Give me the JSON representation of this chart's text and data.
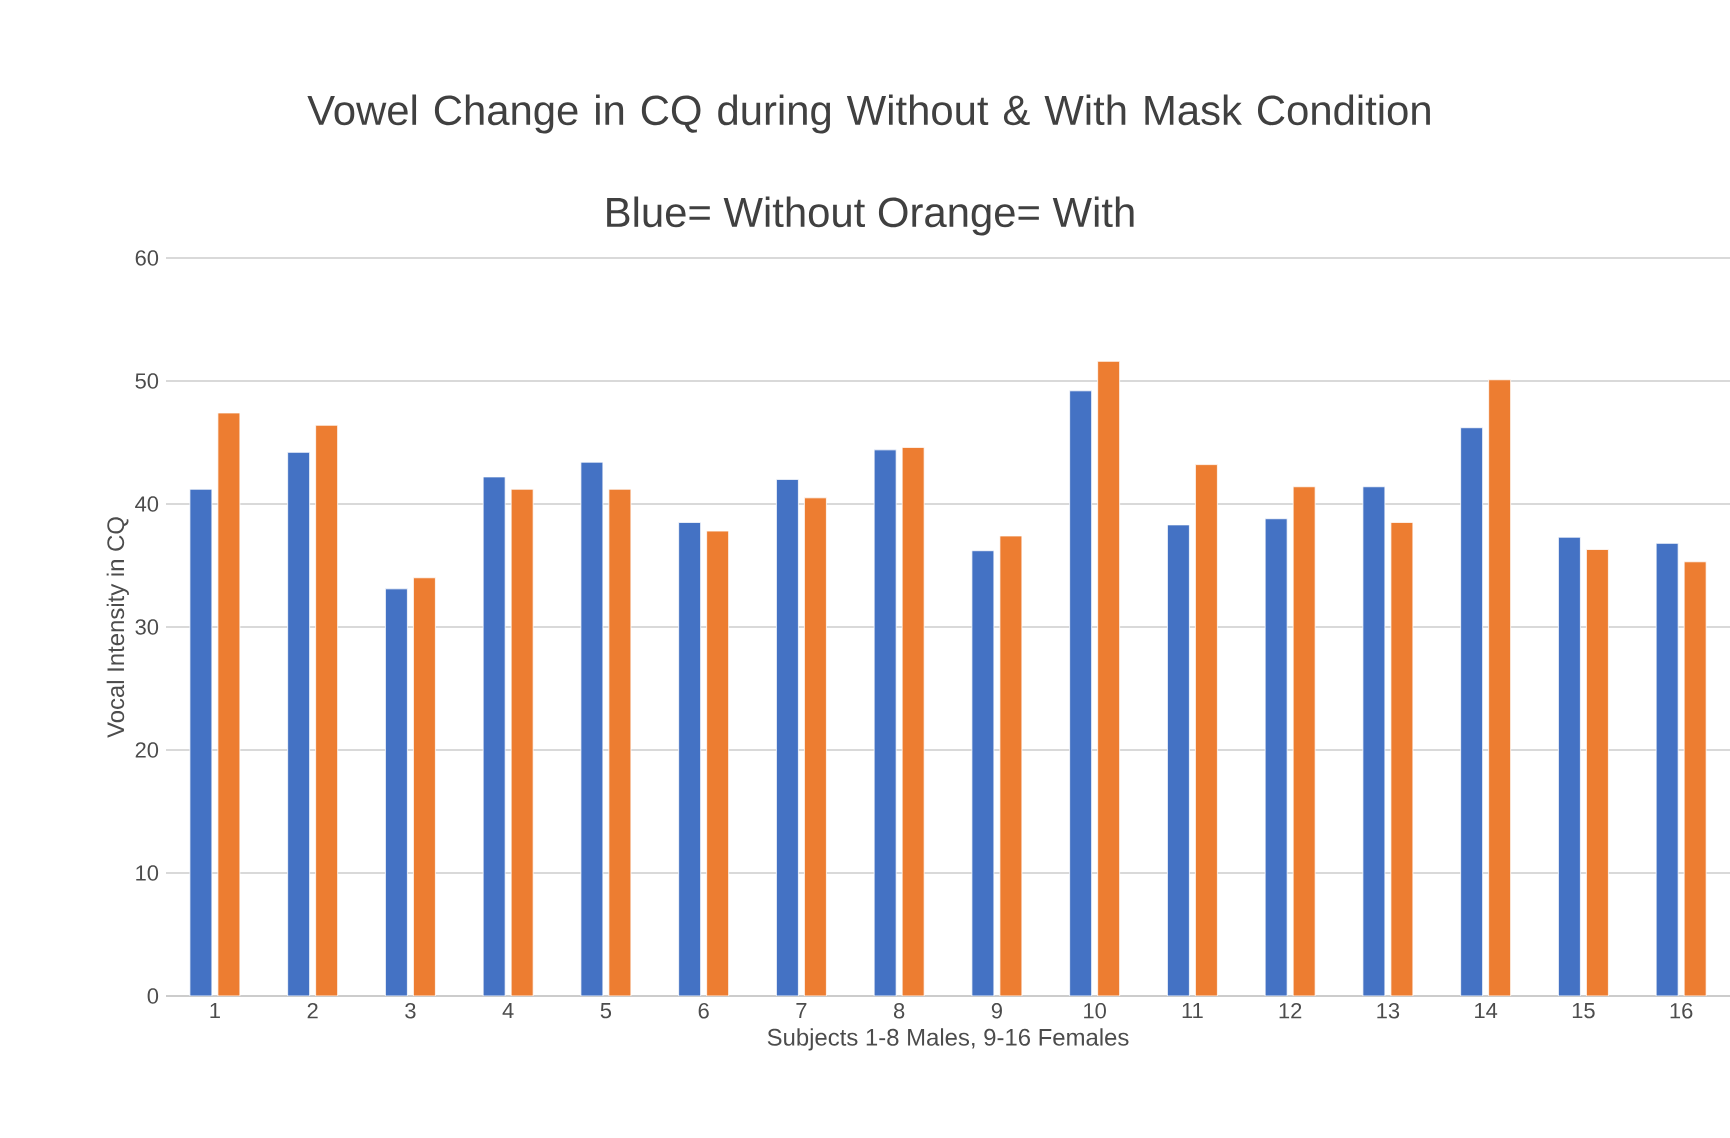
{
  "chart_data": {
    "type": "bar",
    "title": "Vowel Change in CQ during Without & With Mask Condition",
    "subtitle": "Blue= Without  Orange= With",
    "xlabel": "Subjects 1-8 Males, 9-16 Females",
    "ylabel": "Vocal Intensity in CQ",
    "categories": [
      "1",
      "2",
      "3",
      "4",
      "5",
      "6",
      "7",
      "8",
      "9",
      "10",
      "11",
      "12",
      "13",
      "14",
      "15",
      "16"
    ],
    "series": [
      {
        "color": "#4472c4",
        "values": [
          41.2,
          44.2,
          33.1,
          42.2,
          43.4,
          38.5,
          42.0,
          44.4,
          36.2,
          49.2,
          38.3,
          38.8,
          41.4,
          46.2,
          37.3,
          36.8
        ]
      },
      {
        "color": "#ed7d31",
        "values": [
          47.4,
          46.4,
          34.0,
          41.2,
          41.2,
          37.8,
          40.5,
          44.6,
          37.4,
          51.6,
          43.2,
          41.4,
          38.5,
          50.1,
          36.3,
          35.3
        ]
      }
    ],
    "ylim": [
      0,
      60
    ],
    "yticks": [
      0,
      10,
      20,
      30,
      40,
      50,
      60
    ],
    "grid": "y"
  }
}
